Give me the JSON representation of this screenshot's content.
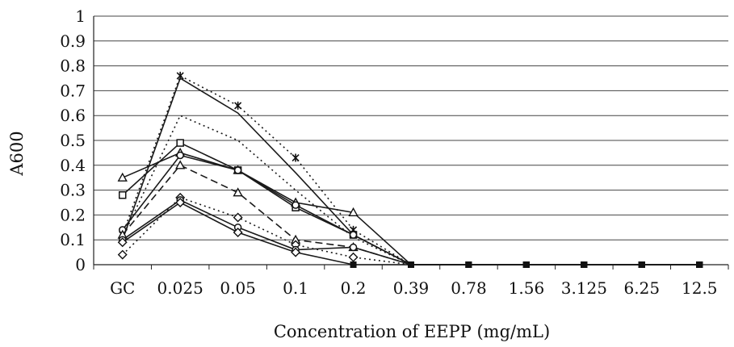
{
  "chart_data": {
    "type": "line",
    "title": "",
    "xlabel": "Concentration of EEPP (mg/mL)",
    "ylabel": "A600",
    "categories": [
      "GC",
      "0.025",
      "0.05",
      "0.1",
      "0.2",
      "0.39",
      "0.78",
      "1.56",
      "3.125",
      "6.25",
      "12.5"
    ],
    "yticks": [
      "0",
      "0.1",
      "0.2",
      "0.3",
      "0.4",
      "0.5",
      "0.6",
      "0.7",
      "0.8",
      "0.9",
      "1"
    ],
    "ylim": [
      0,
      1
    ],
    "grid": true,
    "legend": "none",
    "series": [
      {
        "marker": "star",
        "dash": "dotted",
        "values": [
          0.12,
          0.76,
          0.64,
          0.43,
          0.14,
          0,
          0,
          0,
          0,
          0,
          0
        ]
      },
      {
        "marker": "none",
        "dash": "solid",
        "values": [
          0.1,
          0.75,
          0.61,
          0.37,
          0.12,
          0,
          0,
          0,
          0,
          0,
          0
        ]
      },
      {
        "marker": "none",
        "dash": "dotted",
        "values": [
          0.11,
          0.6,
          0.5,
          0.3,
          0.11,
          0,
          0,
          0,
          0,
          0,
          0
        ]
      },
      {
        "marker": "square",
        "dash": "solid",
        "values": [
          0.28,
          0.49,
          0.38,
          0.23,
          0.12,
          0,
          0,
          0,
          0,
          0,
          0
        ]
      },
      {
        "marker": "triangle",
        "dash": "solid",
        "values": [
          0.35,
          0.45,
          0.38,
          0.25,
          0.21,
          0,
          0,
          0,
          0,
          0,
          0
        ]
      },
      {
        "marker": "circle",
        "dash": "solid",
        "values": [
          0.14,
          0.44,
          0.38,
          0.24,
          0.12,
          0,
          0,
          0,
          0,
          0,
          0
        ]
      },
      {
        "marker": "triangle",
        "dash": "dashed",
        "values": [
          0.12,
          0.4,
          0.29,
          0.1,
          0.07,
          0,
          0,
          0,
          0,
          0,
          0
        ]
      },
      {
        "marker": "diamond",
        "dash": "dotted",
        "values": [
          0.04,
          0.27,
          0.19,
          0.08,
          0.03,
          0,
          0,
          0,
          0,
          0,
          0
        ]
      },
      {
        "marker": "circle",
        "dash": "solid",
        "values": [
          0.1,
          0.26,
          0.15,
          0.06,
          0.07,
          0,
          0,
          0,
          0,
          0,
          0
        ]
      },
      {
        "marker": "diamond",
        "dash": "solid",
        "values": [
          0.09,
          0.25,
          0.13,
          0.05,
          0,
          0,
          0,
          0,
          0,
          0,
          0
        ]
      }
    ]
  }
}
